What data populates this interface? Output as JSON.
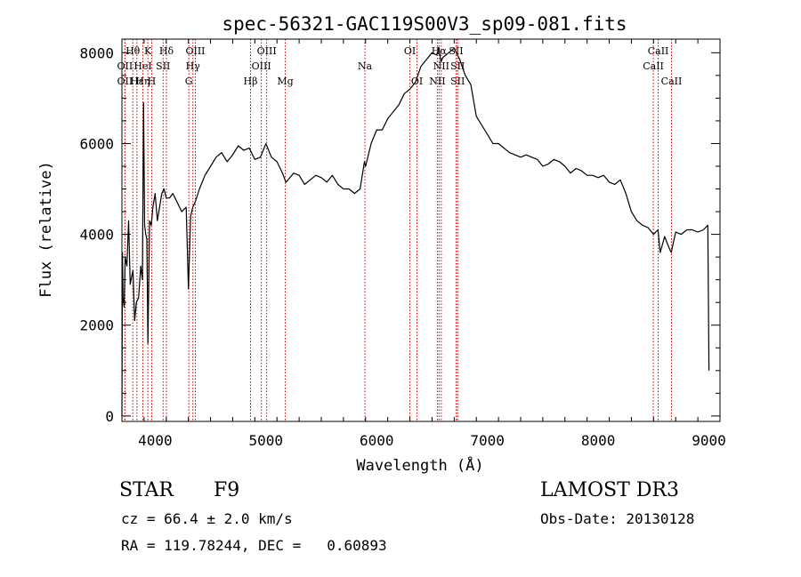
{
  "chart_data": {
    "type": "line",
    "title": "spec-56321-GAC119S00V3_sp09-081.fits",
    "xlabel": "Wavelength (Å)",
    "ylabel": "Flux (relative)",
    "xlim": [
      3700,
      9100
    ],
    "ylim": [
      -120,
      8300
    ],
    "xticks": [
      4000,
      5000,
      6000,
      7000,
      8000,
      9000
    ],
    "xtick_labels": [
      "4000",
      "5000",
      "6000",
      "7000",
      "8000",
      "9000"
    ],
    "yticks": [
      0,
      2000,
      4000,
      6000,
      8000
    ],
    "ytick_labels": [
      "0",
      "2000",
      "4000",
      "6000",
      "8000"
    ],
    "line_color": "#000000",
    "marker_color": "#cc0000",
    "series": [
      {
        "name": "flux",
        "x": [
          3700,
          3705,
          3710,
          3720,
          3730,
          3745,
          3760,
          3775,
          3790,
          3800,
          3815,
          3830,
          3850,
          3870,
          3885,
          3895,
          3905,
          3915,
          3925,
          3935,
          3950,
          3965,
          3980,
          4000,
          4020,
          4040,
          4060,
          4080,
          4100,
          4130,
          4160,
          4200,
          4240,
          4280,
          4300,
          4320,
          4340,
          4360,
          4400,
          4450,
          4500,
          4550,
          4600,
          4650,
          4700,
          4750,
          4800,
          4850,
          4900,
          4950,
          5000,
          5050,
          5100,
          5150,
          5180,
          5200,
          5250,
          5300,
          5350,
          5400,
          5450,
          5500,
          5550,
          5600,
          5650,
          5700,
          5750,
          5800,
          5850,
          5890,
          5900,
          5950,
          6000,
          6050,
          6100,
          6150,
          6200,
          6250,
          6300,
          6350,
          6400,
          6450,
          6500,
          6540,
          6563,
          6580,
          6600,
          6650,
          6700,
          6750,
          6800,
          6850,
          6900,
          6950,
          7000,
          7050,
          7100,
          7150,
          7200,
          7250,
          7300,
          7350,
          7400,
          7450,
          7500,
          7550,
          7600,
          7650,
          7700,
          7750,
          7800,
          7850,
          7900,
          7950,
          8000,
          8050,
          8100,
          8150,
          8200,
          8250,
          8300,
          8350,
          8400,
          8450,
          8500,
          8540,
          8560,
          8600,
          8640,
          8660,
          8700,
          8750,
          8800,
          8850,
          8900,
          8950,
          8990,
          9000
        ],
        "y": [
          0,
          3600,
          2600,
          2400,
          3500,
          3300,
          4300,
          2900,
          3100,
          3200,
          2100,
          2500,
          2600,
          3300,
          3000,
          6900,
          4200,
          4000,
          3900,
          1600,
          4300,
          4200,
          4600,
          4900,
          4300,
          4600,
          4900,
          5000,
          4800,
          4800,
          4900,
          4700,
          4500,
          4600,
          2800,
          4400,
          4600,
          4700,
          5000,
          5300,
          5500,
          5700,
          5800,
          5600,
          5750,
          5950,
          5850,
          5900,
          5650,
          5700,
          6000,
          5700,
          5600,
          5350,
          5150,
          5200,
          5350,
          5300,
          5100,
          5200,
          5300,
          5250,
          5150,
          5300,
          5100,
          5000,
          5000,
          4900,
          5000,
          5600,
          5500,
          6000,
          6300,
          6300,
          6550,
          6700,
          6850,
          7100,
          7200,
          7350,
          7700,
          7850,
          8000,
          7950,
          8100,
          7800,
          7900,
          8000,
          8100,
          7850,
          7500,
          7300,
          6600,
          6400,
          6200,
          6000,
          6000,
          5900,
          5800,
          5750,
          5700,
          5750,
          5700,
          5650,
          5500,
          5550,
          5650,
          5600,
          5500,
          5350,
          5450,
          5400,
          5300,
          5300,
          5250,
          5300,
          5150,
          5100,
          5200,
          4900,
          4500,
          4300,
          4200,
          4150,
          4000,
          4100,
          3600,
          3950,
          3700,
          3600,
          4050,
          4000,
          4100,
          4100,
          4050,
          4100,
          4200,
          1000
        ]
      }
    ],
    "line_markers": [
      {
        "label": "Hθ",
        "x": 3798,
        "row": 1
      },
      {
        "label": "OII",
        "x": 3727,
        "row": 2
      },
      {
        "label": "OII",
        "x": 3727,
        "row": 3
      },
      {
        "label": "Hε",
        "x": 3835,
        "row": 3
      },
      {
        "label": "K",
        "x": 3934,
        "row": 1
      },
      {
        "label": "HeI",
        "x": 3889,
        "row": 2
      },
      {
        "label": "Hη",
        "x": 3889,
        "row": 3
      },
      {
        "label": "H",
        "x": 3969,
        "row": 3
      },
      {
        "label": "Hδ",
        "x": 4102,
        "row": 1
      },
      {
        "label": "SII",
        "x": 4072,
        "row": 2
      },
      {
        "label": "OIII",
        "x": 4363,
        "row": 1
      },
      {
        "label": "Hγ",
        "x": 4341,
        "row": 2
      },
      {
        "label": "G",
        "x": 4304,
        "row": 3
      },
      {
        "label": "Hβ",
        "x": 4861,
        "row": 3
      },
      {
        "label": "OIII",
        "x": 5007,
        "row": 1
      },
      {
        "label": "OIII",
        "x": 4959,
        "row": 2
      },
      {
        "label": "Mg",
        "x": 5175,
        "row": 3
      },
      {
        "label": "Na",
        "x": 5894,
        "row": 2
      },
      {
        "label": "OI",
        "x": 6300,
        "row": 1
      },
      {
        "label": "OI",
        "x": 6364,
        "row": 3
      },
      {
        "label": "Hα",
        "x": 6563,
        "row": 1
      },
      {
        "label": "NII",
        "x": 6583,
        "row": 2
      },
      {
        "label": "NII",
        "x": 6548,
        "row": 3
      },
      {
        "label": "SII",
        "x": 6717,
        "row": 1
      },
      {
        "label": "SII",
        "x": 6731,
        "row": 2
      },
      {
        "label": "SII",
        "x": 6731,
        "row": 3
      },
      {
        "label": "CaII",
        "x": 8542,
        "row": 1
      },
      {
        "label": "CaII",
        "x": 8498,
        "row": 2
      },
      {
        "label": "CaII",
        "x": 8662,
        "row": 3
      }
    ]
  },
  "info": {
    "class_label": "STAR",
    "subclass": "F9",
    "survey": "LAMOST DR3",
    "redshift": "cz = 66.4 ± 2.0 km/s",
    "obs_date": "Obs-Date: 20130128",
    "coords": "RA = 119.78244, DEC =   0.60893"
  }
}
